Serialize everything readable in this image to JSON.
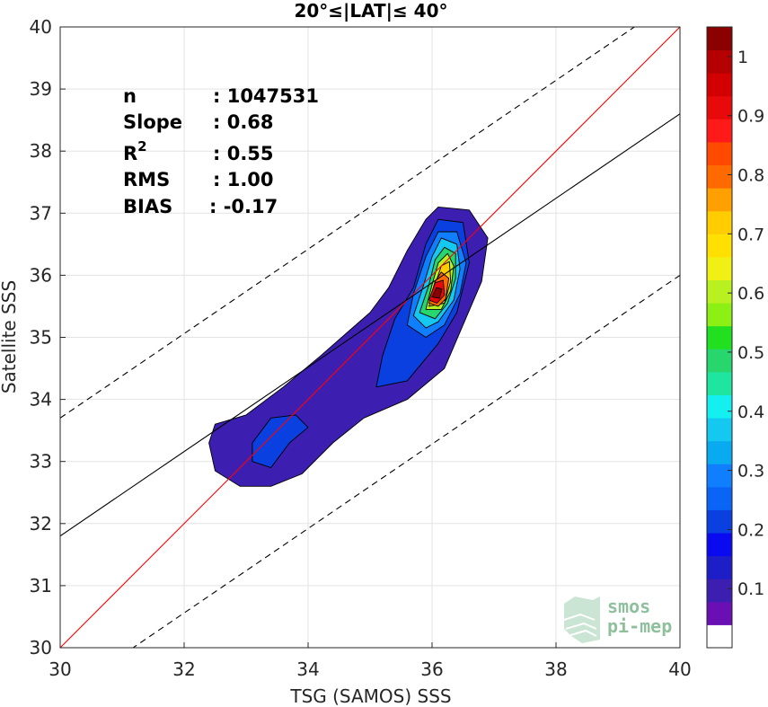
{
  "chart_data": {
    "type": "contour-scatter",
    "title": "20°≤|LAT|≤ 40°",
    "xlabel": "TSG (SAMOS) SSS",
    "ylabel": "Satellite SSS",
    "xlim": [
      30,
      40
    ],
    "ylim": [
      30,
      40
    ],
    "xticks": [
      "30",
      "32",
      "34",
      "36",
      "38",
      "40"
    ],
    "yticks": [
      "30",
      "31",
      "32",
      "33",
      "34",
      "35",
      "36",
      "37",
      "38",
      "39",
      "40"
    ],
    "grid": true,
    "stats": [
      {
        "key": "n",
        "value": ": 1047531"
      },
      {
        "key": "Slope",
        "value": ": 0.68"
      },
      {
        "key": "R",
        "sup": "2",
        "value": ": 0.55"
      },
      {
        "key": "RMS",
        "value": ": 1.00"
      },
      {
        "key": "BIAS",
        "value": ": -0.17"
      }
    ],
    "lines": [
      {
        "name": "identity",
        "color": "#ff0000",
        "style": "solid",
        "slope": 1.0,
        "intercept": 0.0
      },
      {
        "name": "fit",
        "color": "#000000",
        "style": "solid",
        "slope": 0.68,
        "intercept": 11.4
      },
      {
        "name": "fit-upper",
        "color": "#000000",
        "style": "dashed",
        "slope": 0.68,
        "intercept": 13.3
      },
      {
        "name": "fit-lower",
        "color": "#000000",
        "style": "dashed",
        "slope": 0.68,
        "intercept": 8.8
      }
    ],
    "density_levels": [
      {
        "level": 0.0,
        "color": "#3c1fb0",
        "points": [
          [
            32.4,
            33.3
          ],
          [
            32.5,
            33.6
          ],
          [
            33.0,
            33.75
          ],
          [
            33.6,
            34.2
          ],
          [
            34.2,
            34.7
          ],
          [
            34.6,
            35.05
          ],
          [
            35.0,
            35.4
          ],
          [
            35.3,
            35.8
          ],
          [
            35.6,
            36.4
          ],
          [
            35.9,
            36.9
          ],
          [
            36.1,
            37.1
          ],
          [
            36.6,
            37.05
          ],
          [
            36.9,
            36.6
          ],
          [
            36.8,
            35.9
          ],
          [
            36.5,
            35.2
          ],
          [
            36.2,
            34.5
          ],
          [
            35.6,
            34.0
          ],
          [
            34.9,
            33.7
          ],
          [
            34.4,
            33.3
          ],
          [
            33.9,
            32.8
          ],
          [
            33.4,
            32.6
          ],
          [
            32.9,
            32.6
          ],
          [
            32.5,
            32.85
          ]
        ]
      },
      {
        "level": 0.2,
        "color": "#0a3fe0",
        "points": [
          [
            33.1,
            33.0
          ],
          [
            33.1,
            33.3
          ],
          [
            33.4,
            33.7
          ],
          [
            33.8,
            33.75
          ],
          [
            34.0,
            33.55
          ],
          [
            33.7,
            33.3
          ],
          [
            33.4,
            32.9
          ]
        ]
      },
      {
        "level": 0.2,
        "color": "#0a3fe0",
        "points": [
          [
            35.1,
            34.2
          ],
          [
            35.2,
            34.7
          ],
          [
            35.4,
            35.3
          ],
          [
            35.7,
            35.8
          ],
          [
            35.9,
            36.5
          ],
          [
            36.1,
            36.9
          ],
          [
            36.5,
            36.85
          ],
          [
            36.6,
            36.2
          ],
          [
            36.4,
            35.4
          ],
          [
            36.1,
            34.9
          ],
          [
            35.6,
            34.3
          ]
        ]
      },
      {
        "level": 0.3,
        "color": "#0f7fff",
        "points": [
          [
            35.6,
            35.2
          ],
          [
            35.7,
            35.7
          ],
          [
            35.9,
            36.3
          ],
          [
            36.1,
            36.7
          ],
          [
            36.4,
            36.7
          ],
          [
            36.55,
            36.2
          ],
          [
            36.45,
            35.7
          ],
          [
            36.2,
            35.2
          ],
          [
            35.9,
            35.0
          ]
        ]
      },
      {
        "level": 0.4,
        "color": "#14c8f0",
        "points": [
          [
            35.7,
            35.35
          ],
          [
            35.85,
            35.8
          ],
          [
            36.0,
            36.3
          ],
          [
            36.15,
            36.6
          ],
          [
            36.4,
            36.5
          ],
          [
            36.45,
            36.1
          ],
          [
            36.35,
            35.6
          ],
          [
            36.1,
            35.25
          ],
          [
            35.9,
            35.15
          ]
        ]
      },
      {
        "level": 0.5,
        "color": "#28d66e",
        "points": [
          [
            35.8,
            35.4
          ],
          [
            35.95,
            35.85
          ],
          [
            36.05,
            36.25
          ],
          [
            36.2,
            36.45
          ],
          [
            36.38,
            36.35
          ],
          [
            36.38,
            35.95
          ],
          [
            36.25,
            35.55
          ],
          [
            36.05,
            35.3
          ]
        ]
      },
      {
        "level": 0.6,
        "color": "#b8f020",
        "points": [
          [
            35.9,
            35.45
          ],
          [
            36.0,
            35.85
          ],
          [
            36.1,
            36.2
          ],
          [
            36.25,
            36.35
          ],
          [
            36.35,
            36.15
          ],
          [
            36.3,
            35.75
          ],
          [
            36.15,
            35.45
          ]
        ]
      },
      {
        "level": 0.7,
        "color": "#ffcc00",
        "points": [
          [
            35.95,
            35.5
          ],
          [
            36.05,
            35.85
          ],
          [
            36.15,
            36.15
          ],
          [
            36.28,
            36.22
          ],
          [
            36.3,
            35.9
          ],
          [
            36.2,
            35.55
          ]
        ]
      },
      {
        "level": 0.8,
        "color": "#ff6a00",
        "points": [
          [
            35.95,
            35.55
          ],
          [
            36.05,
            35.9
          ],
          [
            36.15,
            36.05
          ],
          [
            36.27,
            35.95
          ],
          [
            36.22,
            35.62
          ],
          [
            36.1,
            35.5
          ]
        ]
      },
      {
        "level": 0.9,
        "color": "#e80a0a",
        "points": [
          [
            35.95,
            35.6
          ],
          [
            36.05,
            35.88
          ],
          [
            36.18,
            35.92
          ],
          [
            36.2,
            35.68
          ],
          [
            36.08,
            35.55
          ]
        ]
      },
      {
        "level": 1.0,
        "color": "#8b0000",
        "points": [
          [
            36.0,
            35.65
          ],
          [
            36.07,
            35.8
          ],
          [
            36.16,
            35.78
          ],
          [
            36.12,
            35.63
          ]
        ]
      }
    ],
    "colorbar": {
      "ticks": [
        "0.1",
        "0.2",
        "0.3",
        "0.4",
        "0.5",
        "0.6",
        "0.7",
        "0.8",
        "0.9",
        "1"
      ],
      "tick_values": [
        0.1,
        0.2,
        0.3,
        0.4,
        0.5,
        0.6,
        0.7,
        0.8,
        0.9,
        1.0
      ],
      "range": [
        0,
        1.05
      ],
      "colors": [
        "#ffffff",
        "#6a0fb4",
        "#3c1fb0",
        "#1e1ec8",
        "#0a0af0",
        "#0a3fe0",
        "#0a64f5",
        "#0f7fff",
        "#0aaaf0",
        "#14c8f0",
        "#14f0f0",
        "#1ee6a0",
        "#28d66e",
        "#20e020",
        "#8cf014",
        "#b8f020",
        "#f0f014",
        "#ffe000",
        "#ffcc00",
        "#ff9f00",
        "#ff6a00",
        "#ff4a00",
        "#ff1a1a",
        "#e80a0a",
        "#d20000",
        "#b40000",
        "#8b0000"
      ]
    }
  },
  "logo": {
    "line1": "smos",
    "line2": "pi-mep"
  }
}
